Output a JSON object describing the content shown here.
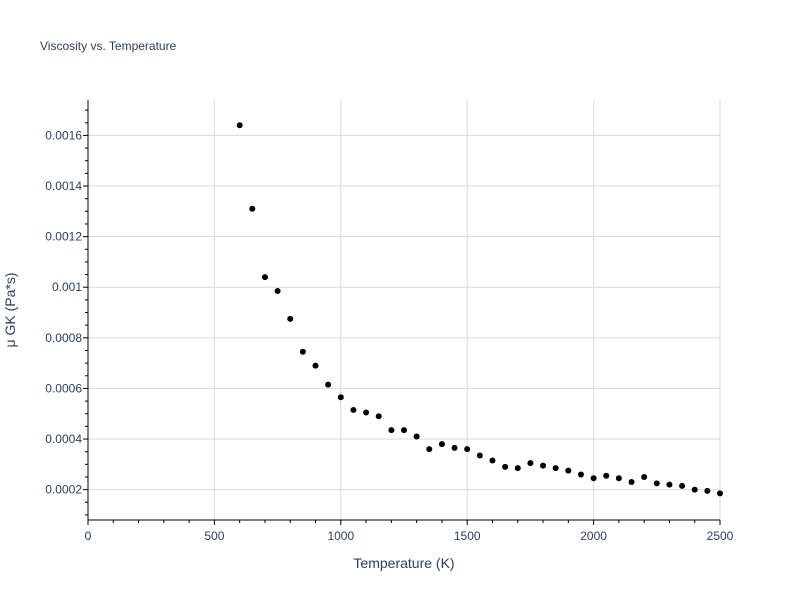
{
  "chart_data": {
    "type": "scatter",
    "title": "Viscosity vs. Temperature",
    "xlabel": "Temperature (K)",
    "ylabel": "μ GK (Pa*s)",
    "xlim": [
      0,
      2500
    ],
    "ylim": [
      8e-05,
      0.00174
    ],
    "x_ticks": [
      0,
      500,
      1000,
      1500,
      2000,
      2500
    ],
    "x_tick_labels": [
      "0",
      "500",
      "1000",
      "1500",
      "2000",
      "2500"
    ],
    "y_ticks": [
      0.0002,
      0.0004,
      0.0006,
      0.0008,
      0.001,
      0.0012,
      0.0014,
      0.0016
    ],
    "y_tick_labels": [
      "0.0002",
      "0.0004",
      "0.0006",
      "0.0008",
      "0.001",
      "0.0012",
      "0.0014",
      "0.0016"
    ],
    "grid": true,
    "marker_color": "#000000",
    "series": [
      {
        "x": [
          600,
          650,
          700,
          750,
          800,
          850,
          900,
          950,
          1000,
          1050,
          1100,
          1150,
          1200,
          1250,
          1300,
          1350,
          1400,
          1450,
          1500,
          1550,
          1600,
          1650,
          1700,
          1750,
          1800,
          1850,
          1900,
          1950,
          2000,
          2050,
          2100,
          2150,
          2200,
          2250,
          2300,
          2350,
          2400,
          2450,
          2500
        ],
        "y": [
          0.00164,
          0.00131,
          0.00104,
          0.000985,
          0.000875,
          0.000745,
          0.00069,
          0.000615,
          0.000565,
          0.000515,
          0.000505,
          0.00049,
          0.000435,
          0.000435,
          0.00041,
          0.00036,
          0.00038,
          0.000365,
          0.00036,
          0.000335,
          0.000315,
          0.00029,
          0.000285,
          0.000305,
          0.000295,
          0.000285,
          0.000275,
          0.00026,
          0.000245,
          0.000255,
          0.000245,
          0.00023,
          0.00025,
          0.000225,
          0.00022,
          0.000215,
          0.0002,
          0.000195,
          0.000185
        ]
      }
    ]
  }
}
